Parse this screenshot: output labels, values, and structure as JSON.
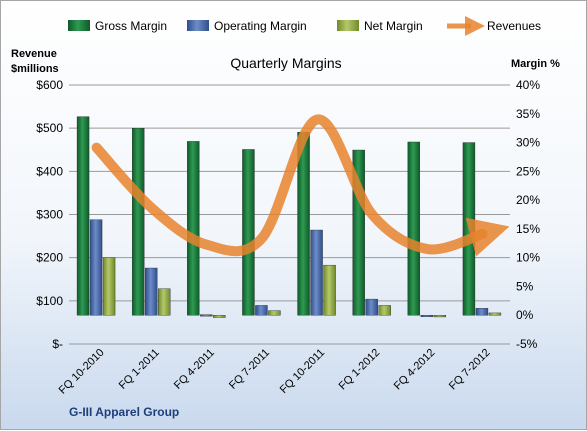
{
  "chart_data": {
    "type": "bar",
    "title": "Quarterly Margins",
    "footer": "G-III Apparel Group",
    "left_axis": {
      "label_line1": "Revenue",
      "label_line2": "$millions",
      "min": 0,
      "max": 600,
      "ticks": [
        0,
        100,
        200,
        300,
        400,
        500,
        600
      ],
      "tick_labels": [
        "$-",
        "$100",
        "$200",
        "$300",
        "$400",
        "$500",
        "$600"
      ]
    },
    "right_axis": {
      "label": "Margin %",
      "min": -5,
      "max": 40,
      "ticks": [
        -5,
        0,
        5,
        10,
        15,
        20,
        25,
        30,
        35,
        40
      ],
      "tick_labels": [
        "-5%",
        "0%",
        "5%",
        "10%",
        "15%",
        "20%",
        "25%",
        "30%",
        "35%",
        "40%"
      ]
    },
    "gridlines": true,
    "legend_position": "top",
    "categories": [
      "FQ 10-2010",
      "FQ 1-2011",
      "FQ 4-2011",
      "FQ 7-2011",
      "FQ 10-2011",
      "FQ 1-2012",
      "FQ 4-2012",
      "FQ 7-2012"
    ],
    "series": [
      {
        "name": "Gross Margin",
        "axis": "right",
        "kind": "bar",
        "color": "#1f7a3e",
        "values": [
          34.5,
          32.5,
          30.2,
          28.8,
          31.8,
          28.7,
          30.1,
          30.0
        ]
      },
      {
        "name": "Operating Margin",
        "axis": "right",
        "kind": "bar",
        "color": "#4f6fae",
        "values": [
          16.6,
          8.2,
          0.1,
          1.7,
          14.8,
          2.8,
          -0.1,
          1.2
        ]
      },
      {
        "name": "Net Margin",
        "axis": "right",
        "kind": "bar",
        "color": "#8fa848",
        "values": [
          10.0,
          4.6,
          -0.4,
          0.8,
          8.7,
          1.7,
          -0.3,
          0.4
        ]
      },
      {
        "name": "Revenues",
        "axis": "left",
        "kind": "line",
        "color": "#e8822d",
        "values": [
          455,
          315,
          230,
          245,
          520,
          300,
          220,
          255
        ]
      }
    ]
  }
}
